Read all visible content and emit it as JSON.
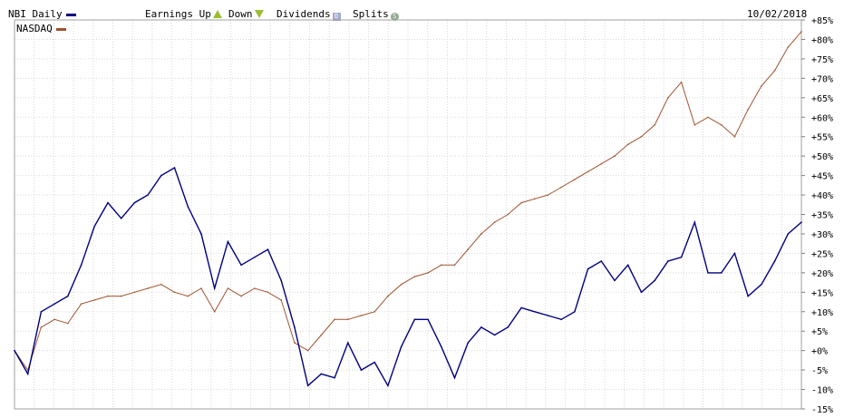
{
  "legend": {
    "nbi_label": "NBI Daily",
    "nasdaq_label": "NASDAQ",
    "earnings_up_label": "Earnings Up",
    "down_label": "Down",
    "dividends_label": "Dividends",
    "dividends_icon_text": "D",
    "splits_label": "Splits",
    "splits_icon_text": "S",
    "date": "10/02/2018"
  },
  "colors": {
    "nbi": "#000080",
    "nasdaq": "#a0522d",
    "grid": "#d8d8d8",
    "earnings_icon": "#9bbd30"
  },
  "chart_data": {
    "type": "line",
    "ylim": [
      -15,
      85
    ],
    "yticks": [
      "+85%",
      "+80%",
      "+75%",
      "+70%",
      "+65%",
      "+60%",
      "+55%",
      "+50%",
      "+45%",
      "+40%",
      "+35%",
      "+30%",
      "+25%",
      "+20%",
      "+15%",
      "+10%",
      "+5%",
      "+0%",
      "-5%",
      "-10%",
      "-15%"
    ],
    "ytick_values": [
      85,
      80,
      75,
      70,
      65,
      60,
      55,
      50,
      45,
      40,
      35,
      30,
      25,
      20,
      15,
      10,
      5,
      0,
      -5,
      -10,
      -15
    ],
    "x_points": 60,
    "series": [
      {
        "name": "NBI Daily",
        "color": "#000080",
        "values": [
          0,
          -6,
          10,
          12,
          14,
          22,
          32,
          38,
          34,
          38,
          40,
          45,
          47,
          37,
          30,
          16,
          28,
          22,
          24,
          26,
          18,
          6,
          -9,
          -6,
          -7,
          2,
          -5,
          -3,
          -9,
          1,
          8,
          8,
          1,
          -7,
          2,
          6,
          4,
          6,
          11,
          10,
          9,
          8,
          10,
          21,
          23,
          18,
          22,
          15,
          18,
          23,
          24,
          33,
          20,
          20,
          25,
          14,
          17,
          23,
          30,
          33
        ]
      },
      {
        "name": "NASDAQ",
        "color": "#a0522d",
        "values": [
          0,
          -5,
          6,
          8,
          7,
          12,
          13,
          14,
          14,
          15,
          16,
          17,
          15,
          14,
          16,
          10,
          16,
          14,
          16,
          15,
          13,
          2,
          0,
          4,
          8,
          8,
          9,
          10,
          14,
          17,
          19,
          20,
          22,
          22,
          26,
          30,
          33,
          35,
          38,
          39,
          40,
          42,
          44,
          46,
          48,
          50,
          53,
          55,
          58,
          65,
          69,
          58,
          60,
          58,
          55,
          62,
          68,
          72,
          78,
          82
        ]
      }
    ]
  }
}
